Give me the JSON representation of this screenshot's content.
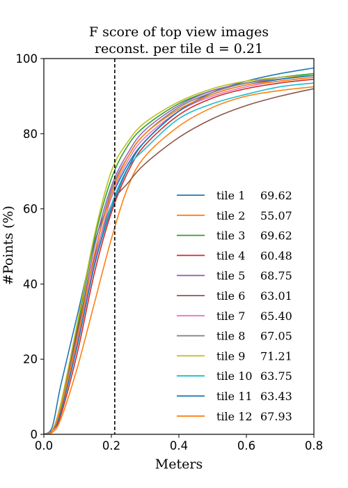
{
  "chart_data": {
    "type": "line",
    "title": "F score of top view images",
    "subtitle": "reconst. per tile d = 0.21",
    "xlabel": "Meters",
    "ylabel": "#Points (%)",
    "xlim": [
      0,
      0.8
    ],
    "ylim": [
      0,
      100
    ],
    "xticks": [
      0.0,
      0.2,
      0.4,
      0.6,
      0.8
    ],
    "xtick_labels": [
      "0.0",
      "0.2",
      "0.4",
      "0.6",
      "0.8"
    ],
    "yticks": [
      0,
      20,
      40,
      60,
      80,
      100
    ],
    "ytick_labels": [
      "0",
      "20",
      "40",
      "60",
      "80",
      "100"
    ],
    "grid": false,
    "legend_position": "lower-right",
    "threshold_line": {
      "x": 0.21,
      "style": "dashed",
      "color": "#000000"
    },
    "series": [
      {
        "name": "tile 1",
        "score": "69.62",
        "color": "#1f77b4",
        "x": [
          0,
          0.025,
          0.05,
          0.1,
          0.15,
          0.2,
          0.25,
          0.3,
          0.4,
          0.5,
          0.6,
          0.7,
          0.8
        ],
        "y": [
          0,
          2,
          13,
          32,
          51,
          63,
          72,
          78,
          86,
          91,
          94,
          96,
          97.5
        ]
      },
      {
        "name": "tile 2",
        "score": "55.07",
        "color": "#ff7f0e",
        "x": [
          0,
          0.025,
          0.05,
          0.1,
          0.15,
          0.2,
          0.25,
          0.3,
          0.4,
          0.5,
          0.6,
          0.7,
          0.8
        ],
        "y": [
          0,
          0.5,
          4,
          18,
          35,
          52,
          66,
          74,
          82,
          87,
          90,
          91.5,
          92.5
        ]
      },
      {
        "name": "tile 3",
        "score": "69.62",
        "color": "#2ca02c",
        "x": [
          0,
          0.025,
          0.05,
          0.1,
          0.15,
          0.2,
          0.25,
          0.3,
          0.4,
          0.5,
          0.6,
          0.7,
          0.8
        ],
        "y": [
          0,
          1,
          8,
          29,
          52,
          68,
          77,
          82,
          88,
          91.5,
          93.5,
          95,
          96
        ]
      },
      {
        "name": "tile 4",
        "score": "60.48",
        "color": "#d62728",
        "x": [
          0,
          0.025,
          0.05,
          0.1,
          0.15,
          0.2,
          0.25,
          0.3,
          0.4,
          0.5,
          0.6,
          0.7,
          0.8
        ],
        "y": [
          0,
          1,
          5,
          22,
          43,
          59,
          70,
          77,
          85,
          89.5,
          92,
          93.5,
          94.5
        ]
      },
      {
        "name": "tile 5",
        "score": "68.75",
        "color": "#9467bd",
        "x": [
          0,
          0.025,
          0.05,
          0.1,
          0.15,
          0.2,
          0.25,
          0.3,
          0.4,
          0.5,
          0.6,
          0.7,
          0.8
        ],
        "y": [
          0,
          1,
          7,
          27,
          50,
          66,
          75,
          81,
          87.5,
          91.5,
          93.5,
          95,
          95.5
        ]
      },
      {
        "name": "tile 6",
        "score": "63.01",
        "color": "#8c564b",
        "x": [
          0,
          0.025,
          0.05,
          0.1,
          0.15,
          0.2,
          0.25,
          0.3,
          0.4,
          0.5,
          0.6,
          0.7,
          0.8
        ],
        "y": [
          0,
          1,
          8,
          28,
          47,
          61,
          67,
          72,
          79,
          84,
          87.5,
          90,
          92
        ]
      },
      {
        "name": "tile 7",
        "score": "65.40",
        "color": "#e377c2",
        "x": [
          0,
          0.025,
          0.05,
          0.1,
          0.15,
          0.2,
          0.25,
          0.3,
          0.4,
          0.5,
          0.6,
          0.7,
          0.8
        ],
        "y": [
          0,
          1,
          6,
          25,
          46,
          63,
          73,
          79,
          86,
          90,
          92.5,
          94,
          95
        ]
      },
      {
        "name": "tile 8",
        "score": "67.05",
        "color": "#7f7f7f",
        "x": [
          0,
          0.025,
          0.05,
          0.1,
          0.15,
          0.2,
          0.25,
          0.3,
          0.4,
          0.5,
          0.6,
          0.7,
          0.8
        ],
        "y": [
          0,
          1,
          7,
          26,
          48,
          65,
          74,
          80,
          87,
          91,
          93.5,
          94.5,
          95.5
        ]
      },
      {
        "name": "tile 9",
        "score": "71.21",
        "color": "#bcbd22",
        "x": [
          0,
          0.025,
          0.05,
          0.1,
          0.15,
          0.2,
          0.25,
          0.3,
          0.4,
          0.5,
          0.6,
          0.7,
          0.8
        ],
        "y": [
          0,
          1,
          8,
          30,
          53,
          70,
          78,
          83,
          88.5,
          92,
          94,
          95,
          95.5
        ]
      },
      {
        "name": "tile 10",
        "score": "63.75",
        "color": "#17becf",
        "x": [
          0,
          0.025,
          0.05,
          0.1,
          0.15,
          0.2,
          0.25,
          0.3,
          0.4,
          0.5,
          0.6,
          0.7,
          0.8
        ],
        "y": [
          0,
          1,
          6,
          24,
          45,
          61,
          71,
          76,
          84,
          88,
          90.5,
          92.5,
          93.5
        ]
      },
      {
        "name": "tile 11",
        "score": "63.43",
        "color": "#1f77b4",
        "x": [
          0,
          0.025,
          0.05,
          0.1,
          0.15,
          0.2,
          0.25,
          0.3,
          0.4,
          0.5,
          0.6,
          0.7,
          0.8
        ],
        "y": [
          0,
          1,
          6,
          24,
          45,
          60,
          71,
          78,
          86,
          90.5,
          93,
          94.5,
          95.5
        ]
      },
      {
        "name": "tile 12",
        "score": "67.93",
        "color": "#ff7f0e",
        "x": [
          0,
          0.025,
          0.05,
          0.1,
          0.15,
          0.2,
          0.25,
          0.3,
          0.4,
          0.5,
          0.6,
          0.7,
          0.8
        ],
        "y": [
          0,
          1,
          7,
          26,
          48,
          64,
          74,
          80,
          86.5,
          90.5,
          93,
          94,
          95
        ]
      }
    ]
  }
}
